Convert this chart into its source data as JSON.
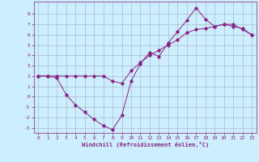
{
  "xlabel": "Windchill (Refroidissement éolien,°C)",
  "bg_color": "#cceeff",
  "grid_color": "#aabbcc",
  "line_color": "#882288",
  "line1_x": [
    0,
    1,
    2,
    3,
    4,
    5,
    6,
    7,
    8,
    9,
    10,
    11,
    12,
    13,
    14,
    15,
    16,
    17,
    18,
    19,
    20,
    21,
    22,
    23
  ],
  "line1_y": [
    2.0,
    2.0,
    1.8,
    0.2,
    -0.8,
    -1.5,
    -2.2,
    -2.8,
    -3.2,
    -1.8,
    1.5,
    3.2,
    4.3,
    3.9,
    5.2,
    6.3,
    7.4,
    8.6,
    7.5,
    6.8,
    7.0,
    6.8,
    6.6,
    6.0
  ],
  "line2_x": [
    0,
    1,
    2,
    3,
    4,
    5,
    6,
    7,
    8,
    9,
    10,
    11,
    12,
    13,
    14,
    15,
    16,
    17,
    18,
    19,
    20,
    21,
    22,
    23
  ],
  "line2_y": [
    2.0,
    2.0,
    2.0,
    2.0,
    2.0,
    2.0,
    2.0,
    2.0,
    1.5,
    1.3,
    2.5,
    3.3,
    4.0,
    4.5,
    5.0,
    5.5,
    6.2,
    6.5,
    6.6,
    6.8,
    7.0,
    7.0,
    6.5,
    6.0
  ],
  "xlim": [
    -0.5,
    23.5
  ],
  "ylim": [
    -3.5,
    9.2
  ],
  "xticks": [
    0,
    1,
    2,
    3,
    4,
    5,
    6,
    7,
    8,
    9,
    10,
    11,
    12,
    13,
    14,
    15,
    16,
    17,
    18,
    19,
    20,
    21,
    22,
    23
  ],
  "yticks": [
    -3,
    -2,
    -1,
    0,
    1,
    2,
    3,
    4,
    5,
    6,
    7,
    8
  ]
}
